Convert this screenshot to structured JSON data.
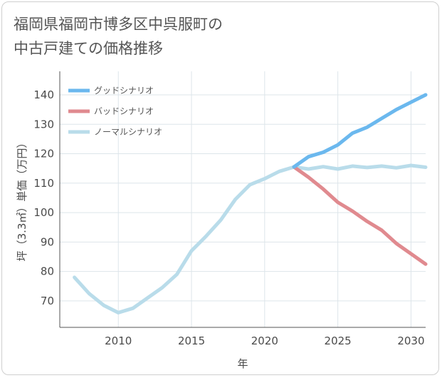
{
  "chart_data": {
    "type": "line",
    "title": "福岡県福岡市博多区中呉服町の\n中古戸建ての価格推移",
    "xlabel": "年",
    "ylabel": "坪（3.3㎡）単価（万円）",
    "xlim": [
      2006,
      2031
    ],
    "ylim": [
      61,
      148
    ],
    "x_ticks": [
      2010,
      2015,
      2020,
      2025,
      2030
    ],
    "y_ticks": [
      70,
      80,
      90,
      100,
      110,
      120,
      130,
      140
    ],
    "grid": true,
    "legend_position": "top-left",
    "series": [
      {
        "name": "グッドシナリオ",
        "color": "#6bb8ee",
        "x": [
          2022,
          2023,
          2024,
          2025,
          2026,
          2027,
          2028,
          2029,
          2030,
          2031
        ],
        "y": [
          115.5,
          119.0,
          120.5,
          123.0,
          127.0,
          129.0,
          132.0,
          135.0,
          137.5,
          140.0
        ]
      },
      {
        "name": "バッドシナリオ",
        "color": "#e08a8f",
        "x": [
          2022,
          2023,
          2024,
          2025,
          2026,
          2027,
          2028,
          2029,
          2030,
          2031
        ],
        "y": [
          115.5,
          112.0,
          108.0,
          103.5,
          100.5,
          97.0,
          94.0,
          89.5,
          86.0,
          82.5
        ]
      },
      {
        "name": "ノーマルシナリオ",
        "color": "#b9dcea",
        "x": [
          2007,
          2008,
          2009,
          2010,
          2011,
          2012,
          2013,
          2014,
          2015,
          2016,
          2017,
          2018,
          2019,
          2020,
          2021,
          2022,
          2023,
          2024,
          2025,
          2026,
          2027,
          2028,
          2029,
          2030,
          2031
        ],
        "y": [
          78.0,
          72.5,
          68.5,
          66.0,
          67.5,
          71.0,
          74.5,
          79.0,
          87.0,
          92.0,
          97.5,
          104.5,
          109.5,
          111.5,
          114.0,
          115.5,
          114.8,
          115.6,
          114.8,
          115.8,
          115.3,
          115.8,
          115.2,
          116.0,
          115.4
        ]
      }
    ]
  }
}
